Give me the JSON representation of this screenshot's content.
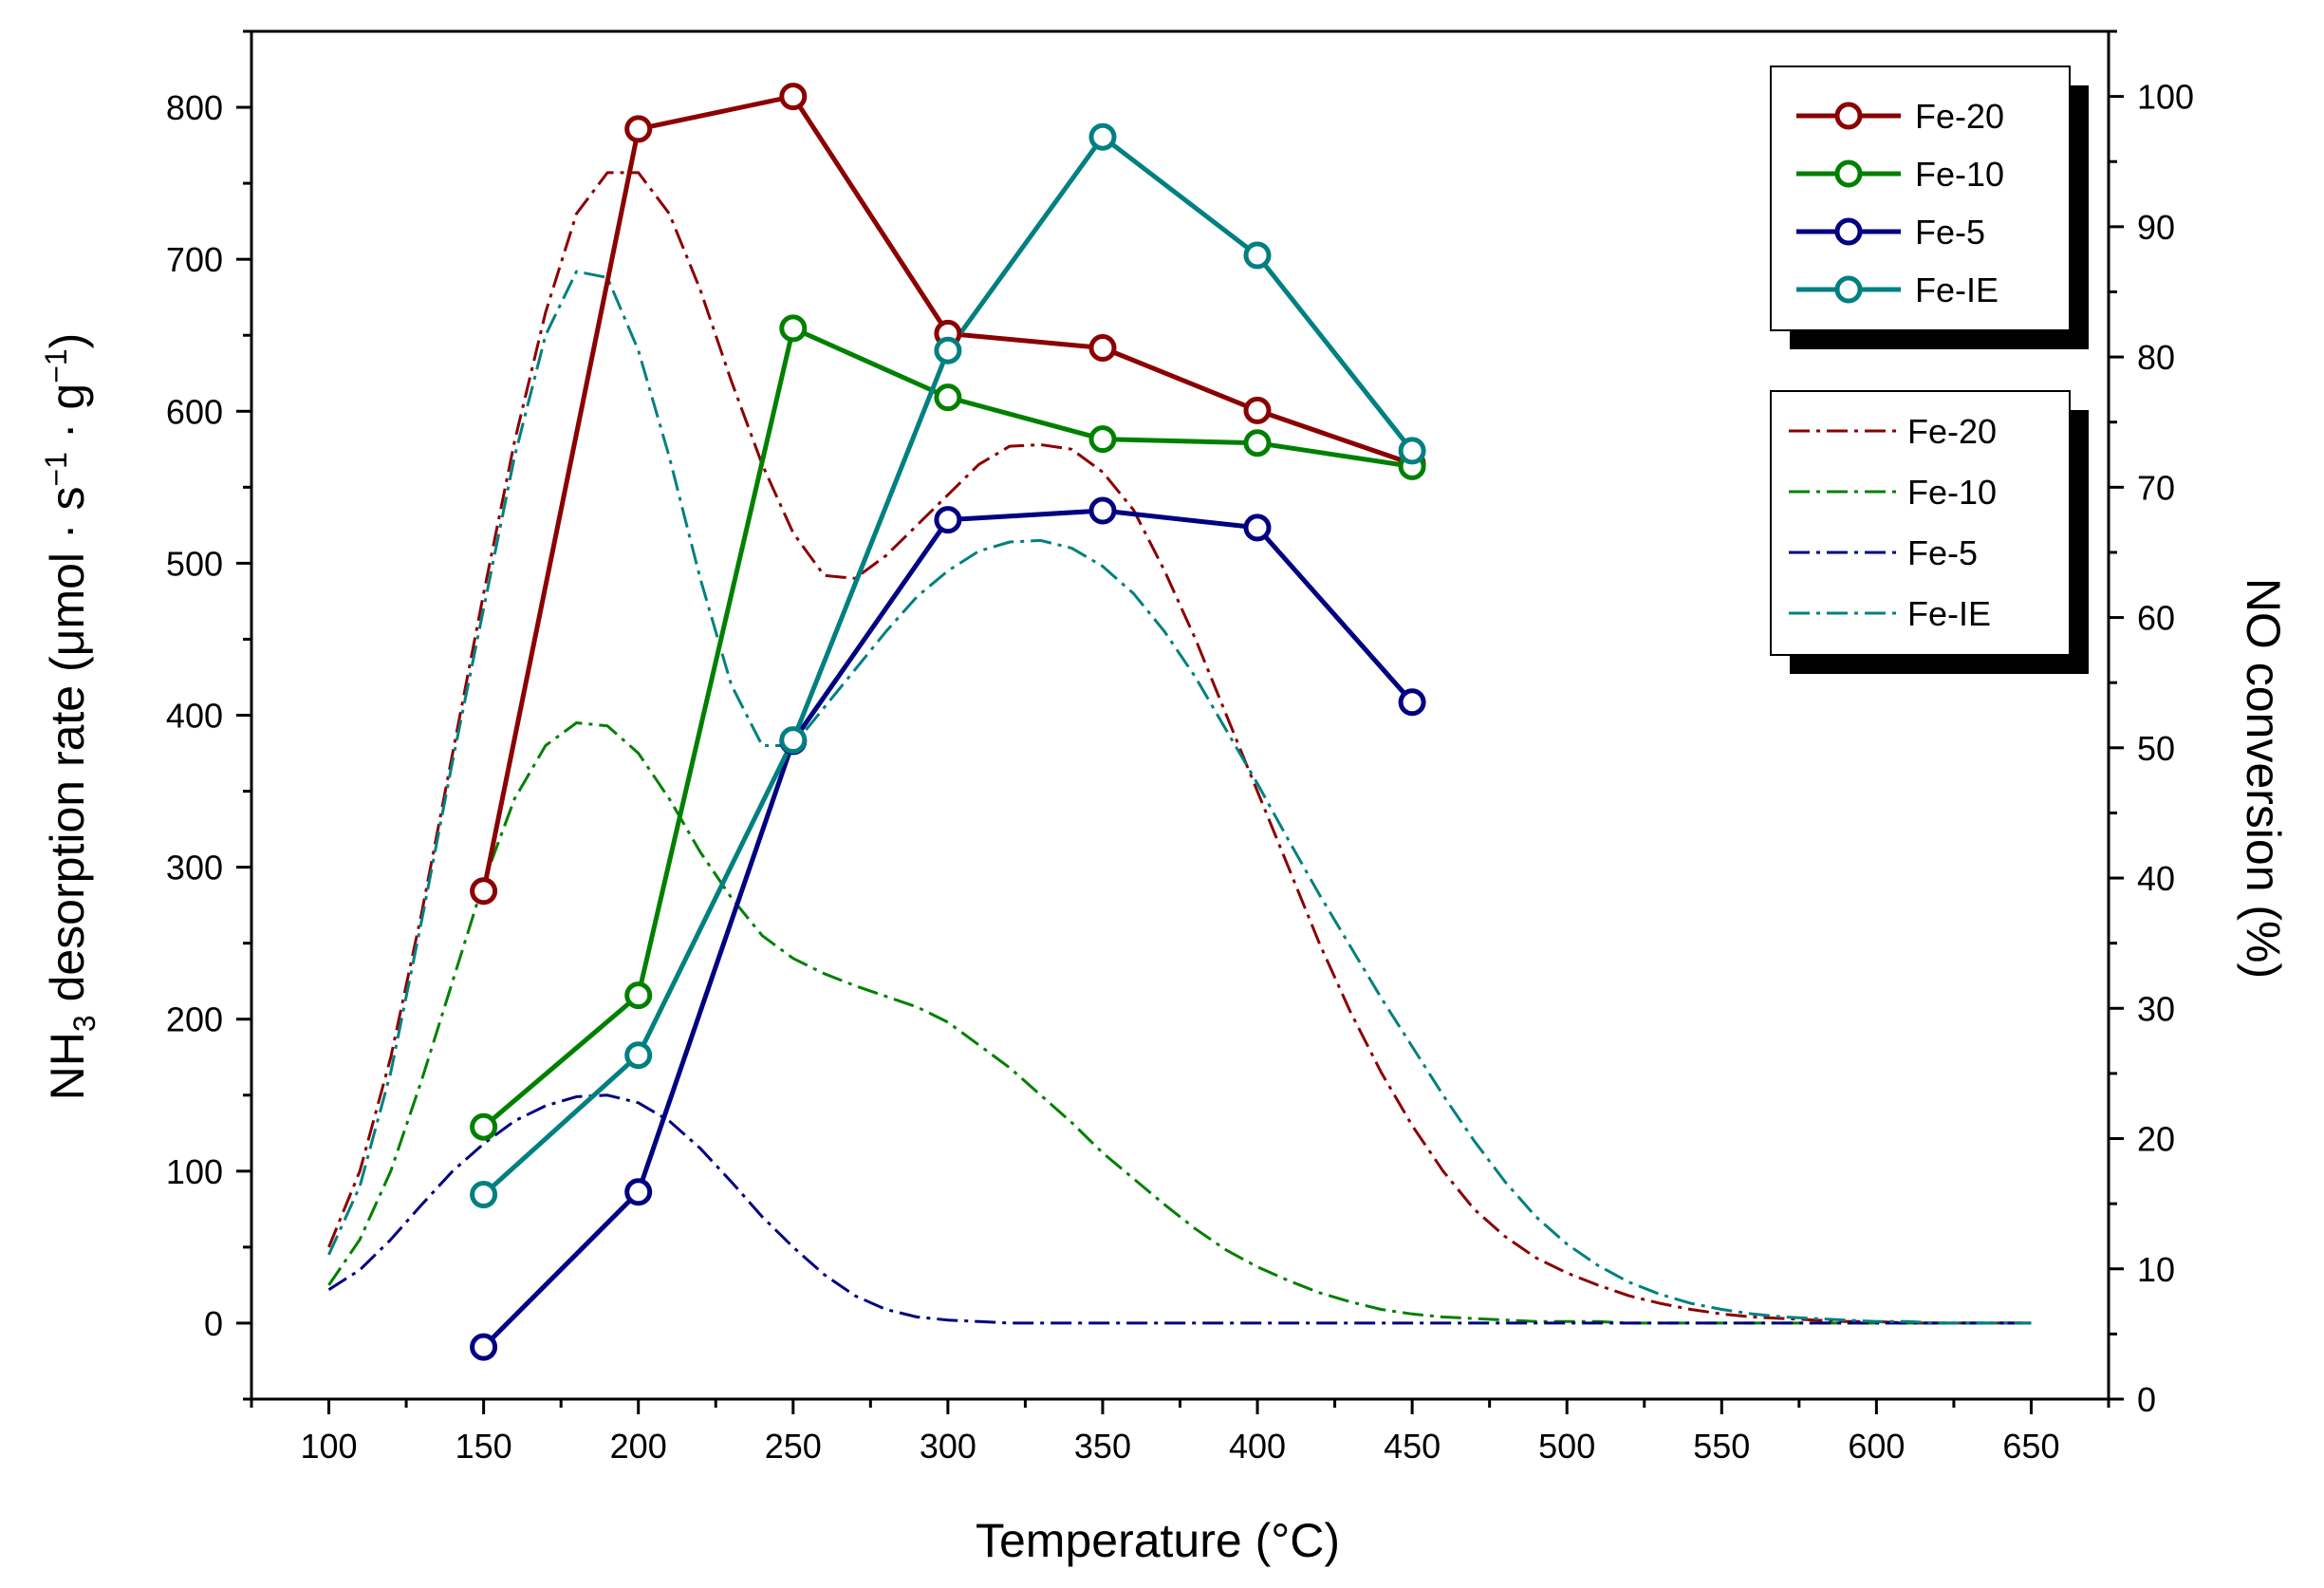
{
  "chart_data": {
    "type": "line",
    "xlabel": "Temperature (°C)",
    "ylabel_left": {
      "base": "NH",
      "sub": "3",
      "rest": " desorption rate (μmol · s",
      "sup1": "−1",
      "mid": " · g",
      "sup2": "−1",
      "end": ")"
    },
    "ylabel_right": "NO conversion (%)",
    "xlim": [
      75,
      675
    ],
    "ylim_left": [
      -50,
      850
    ],
    "ylim_right": [
      0,
      105
    ],
    "x_ticks": [
      "100",
      "150",
      "200",
      "250",
      "300",
      "350",
      "400",
      "450",
      "500",
      "550",
      "600",
      "650"
    ],
    "y_left_ticks": [
      "0",
      "100",
      "200",
      "300",
      "400",
      "500",
      "600",
      "700",
      "800"
    ],
    "y_right_ticks": [
      "0",
      "10",
      "20",
      "30",
      "40",
      "50",
      "60",
      "70",
      "80",
      "90",
      "100"
    ],
    "conversion_series": [
      {
        "name": "Fe-20",
        "color": "#8b0000",
        "x": [
          150,
          200,
          250,
          300,
          350,
          400,
          450
        ],
        "values": [
          39,
          97.5,
          100,
          81.8,
          80.7,
          75.9,
          71.8
        ]
      },
      {
        "name": "Fe-10",
        "color": "#008000",
        "x": [
          150,
          200,
          250,
          300,
          350,
          400,
          450
        ],
        "values": [
          20.9,
          31,
          82.2,
          76.9,
          73.7,
          73.4,
          71.6
        ]
      },
      {
        "name": "Fe-5",
        "color": "#000080",
        "x": [
          150,
          200,
          250,
          300,
          350,
          400,
          450
        ],
        "values": [
          4,
          15.9,
          50.5,
          67.5,
          68.2,
          66.9,
          53.5
        ]
      },
      {
        "name": "Fe-IE",
        "color": "#008080",
        "x": [
          150,
          200,
          250,
          300,
          350,
          400,
          450
        ],
        "values": [
          15.7,
          26.4,
          50.6,
          80.5,
          96.9,
          87.8,
          72.8
        ]
      }
    ],
    "desorption_series": [
      {
        "name": "Fe-20",
        "color": "#8b0000",
        "x": [
          100,
          110,
          120,
          130,
          140,
          150,
          160,
          170,
          180,
          190,
          200,
          210,
          220,
          230,
          240,
          250,
          260,
          270,
          280,
          290,
          300,
          310,
          320,
          330,
          340,
          350,
          360,
          370,
          380,
          390,
          400,
          410,
          420,
          430,
          440,
          450,
          460,
          470,
          480,
          490,
          500,
          510,
          520,
          530,
          540,
          550,
          560,
          570,
          580,
          590,
          600,
          610,
          620,
          630,
          640,
          650
        ],
        "values": [
          50,
          100,
          175,
          270,
          375,
          480,
          580,
          665,
          730,
          757,
          757,
          730,
          680,
          620,
          565,
          520,
          492,
          490,
          505,
          525,
          545,
          565,
          577,
          578,
          575,
          560,
          535,
          495,
          450,
          400,
          350,
          300,
          250,
          205,
          165,
          130,
          100,
          75,
          57,
          43,
          33,
          25,
          18,
          13,
          9,
          6,
          4,
          3,
          2,
          1,
          1,
          0,
          0,
          0,
          0,
          0
        ]
      },
      {
        "name": "Fe-10",
        "color": "#008000",
        "x": [
          100,
          110,
          120,
          130,
          140,
          150,
          160,
          170,
          180,
          190,
          200,
          210,
          220,
          230,
          240,
          250,
          260,
          270,
          280,
          290,
          300,
          310,
          320,
          330,
          340,
          350,
          360,
          370,
          380,
          390,
          400,
          410,
          420,
          430,
          440,
          450,
          460,
          470,
          480,
          490,
          500,
          510,
          520,
          530,
          540,
          550,
          560,
          570,
          580,
          590,
          600,
          610,
          620,
          630,
          640,
          650
        ],
        "values": [
          25,
          55,
          100,
          160,
          225,
          290,
          345,
          380,
          395,
          393,
          375,
          345,
          310,
          280,
          255,
          240,
          230,
          222,
          215,
          208,
          198,
          183,
          168,
          150,
          132,
          112,
          95,
          78,
          62,
          48,
          37,
          28,
          20,
          14,
          9,
          6,
          4,
          3,
          2,
          1,
          1,
          1,
          0,
          0,
          0,
          0,
          0,
          0,
          0,
          0,
          0,
          0,
          0,
          0,
          0,
          0
        ]
      },
      {
        "name": "Fe-5",
        "color": "#000080",
        "x": [
          100,
          110,
          120,
          130,
          140,
          150,
          160,
          170,
          180,
          190,
          200,
          210,
          220,
          230,
          240,
          250,
          260,
          270,
          280,
          290,
          300,
          310,
          320,
          330,
          340,
          350,
          360,
          370,
          380,
          390,
          400,
          410,
          420,
          430,
          440,
          450,
          460,
          470,
          480,
          490,
          500,
          510,
          520,
          530,
          540,
          550,
          560,
          570,
          580,
          590,
          600,
          610,
          620,
          630,
          640,
          650
        ],
        "values": [
          22,
          35,
          55,
          78,
          100,
          118,
          133,
          143,
          149,
          150,
          145,
          133,
          115,
          93,
          70,
          50,
          32,
          18,
          9,
          4,
          2,
          1,
          0,
          0,
          0,
          0,
          0,
          0,
          0,
          0,
          0,
          0,
          0,
          0,
          0,
          0,
          0,
          0,
          0,
          0,
          0,
          0,
          0,
          0,
          0,
          0,
          0,
          0,
          0,
          0,
          0,
          0,
          0,
          0,
          0,
          0
        ]
      },
      {
        "name": "Fe-IE",
        "color": "#008080",
        "x": [
          100,
          110,
          120,
          130,
          140,
          150,
          160,
          170,
          180,
          190,
          200,
          210,
          220,
          230,
          240,
          250,
          260,
          270,
          280,
          290,
          300,
          310,
          320,
          330,
          340,
          350,
          360,
          370,
          380,
          390,
          400,
          410,
          420,
          430,
          440,
          450,
          460,
          470,
          480,
          490,
          500,
          510,
          520,
          530,
          540,
          550,
          560,
          570,
          580,
          590,
          600,
          610,
          620,
          630,
          640,
          650
        ],
        "values": [
          45,
          90,
          165,
          265,
          370,
          470,
          570,
          650,
          692,
          688,
          640,
          570,
          490,
          420,
          380,
          380,
          405,
          430,
          455,
          478,
          495,
          508,
          514,
          515,
          510,
          498,
          480,
          455,
          425,
          390,
          355,
          318,
          282,
          248,
          214,
          182,
          150,
          120,
          93,
          70,
          52,
          38,
          27,
          19,
          13,
          9,
          6,
          4,
          3,
          2,
          1,
          1,
          0,
          0,
          0,
          0
        ]
      }
    ],
    "legend_markers": [
      "Fe-20",
      "Fe-10",
      "Fe-5",
      "Fe-IE"
    ],
    "legend_dashed": [
      "Fe-20",
      "Fe-10",
      "Fe-5",
      "Fe-IE"
    ],
    "legend_placement": "top-right"
  }
}
